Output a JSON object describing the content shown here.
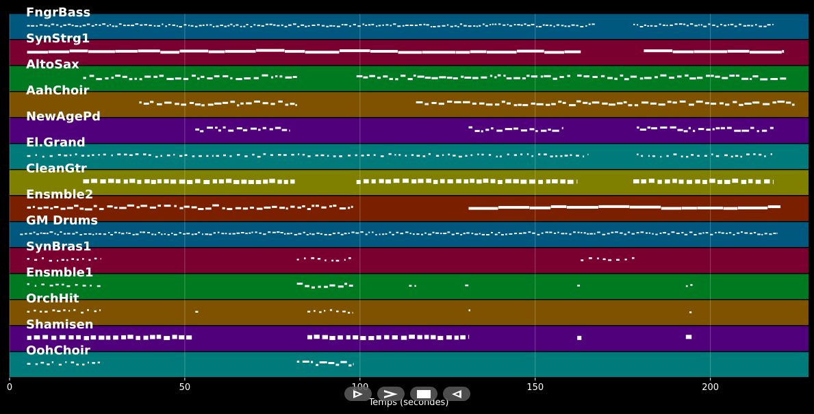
{
  "chart_data": {
    "type": "piano-roll",
    "xlabel": "Temps (secondes)",
    "xlim": [
      0,
      228
    ],
    "xticks": [
      0,
      50,
      100,
      150,
      200
    ],
    "grid": true,
    "tracks": [
      {
        "name": "FngrBass",
        "color": "#00587f",
        "segments": [
          [
            5,
            167,
            "dense"
          ],
          [
            178,
            218,
            "dense"
          ]
        ]
      },
      {
        "name": "SynStrg1",
        "color": "#7a0030",
        "segments": [
          [
            5,
            163,
            "long"
          ],
          [
            181,
            221,
            "long"
          ]
        ]
      },
      {
        "name": "AltoSax",
        "color": "#007a20",
        "segments": [
          [
            21,
            82,
            "phrase"
          ],
          [
            99,
            160,
            "phrase"
          ],
          [
            162,
            222,
            "phrase"
          ]
        ]
      },
      {
        "name": "AahChoir",
        "color": "#7f5200",
        "segments": [
          [
            37,
            82,
            "phrase"
          ],
          [
            116,
            224,
            "phrase"
          ]
        ]
      },
      {
        "name": "NewAgePd",
        "color": "#50007a",
        "segments": [
          [
            53,
            80,
            "phrase"
          ],
          [
            131,
            158,
            "phrase"
          ],
          [
            179,
            218,
            "phrase"
          ]
        ]
      },
      {
        "name": "El.Grand",
        "color": "#007a7a",
        "segments": [
          [
            5,
            165,
            "sparse"
          ],
          [
            179,
            218,
            "sparse"
          ]
        ]
      },
      {
        "name": "CleanGtr",
        "color": "#7f7f00",
        "segments": [
          [
            21,
            82,
            "blocks"
          ],
          [
            99,
            162,
            "blocks"
          ],
          [
            178,
            218,
            "blocks"
          ]
        ]
      },
      {
        "name": "Ensmble2",
        "color": "#7a2000",
        "segments": [
          [
            5,
            98,
            "phrase"
          ],
          [
            131,
            220,
            "long"
          ]
        ]
      },
      {
        "name": "GM Drums",
        "color": "#00587f",
        "segments": [
          [
            3,
            219,
            "dense"
          ]
        ]
      },
      {
        "name": "SynBras1",
        "color": "#7a0030",
        "segments": [
          [
            5,
            26,
            "sparse"
          ],
          [
            82,
            98,
            "sparse"
          ],
          [
            163,
            179,
            "sparse"
          ]
        ]
      },
      {
        "name": "Ensmble1",
        "color": "#007a20",
        "segments": [
          [
            5,
            26,
            "sparse"
          ],
          [
            82,
            98,
            "phrase"
          ],
          [
            114,
            116,
            "sparse"
          ],
          [
            130,
            132,
            "sparse"
          ],
          [
            162,
            164,
            "sparse"
          ],
          [
            193,
            195,
            "sparse"
          ]
        ]
      },
      {
        "name": "OrchHit",
        "color": "#7f5200",
        "segments": [
          [
            5,
            26,
            "sparse"
          ],
          [
            53,
            54,
            "sparse"
          ],
          [
            85,
            98,
            "sparse"
          ],
          [
            131,
            132,
            "sparse"
          ],
          [
            194,
            195,
            "sparse"
          ]
        ]
      },
      {
        "name": "Shamisen",
        "color": "#50007a",
        "segments": [
          [
            5,
            52,
            "blocks"
          ],
          [
            85,
            131,
            "blocks"
          ],
          [
            162,
            164,
            "blocks"
          ],
          [
            193,
            195,
            "blocks"
          ]
        ]
      },
      {
        "name": "OohChoir",
        "color": "#007a7a",
        "segments": [
          [
            5,
            26,
            "sparse"
          ],
          [
            82,
            98,
            "phrase"
          ]
        ]
      }
    ]
  },
  "controls": [
    {
      "name": "play-icon"
    },
    {
      "name": "fast-forward-icon"
    },
    {
      "name": "stop-icon"
    },
    {
      "name": "rewind-icon"
    }
  ]
}
